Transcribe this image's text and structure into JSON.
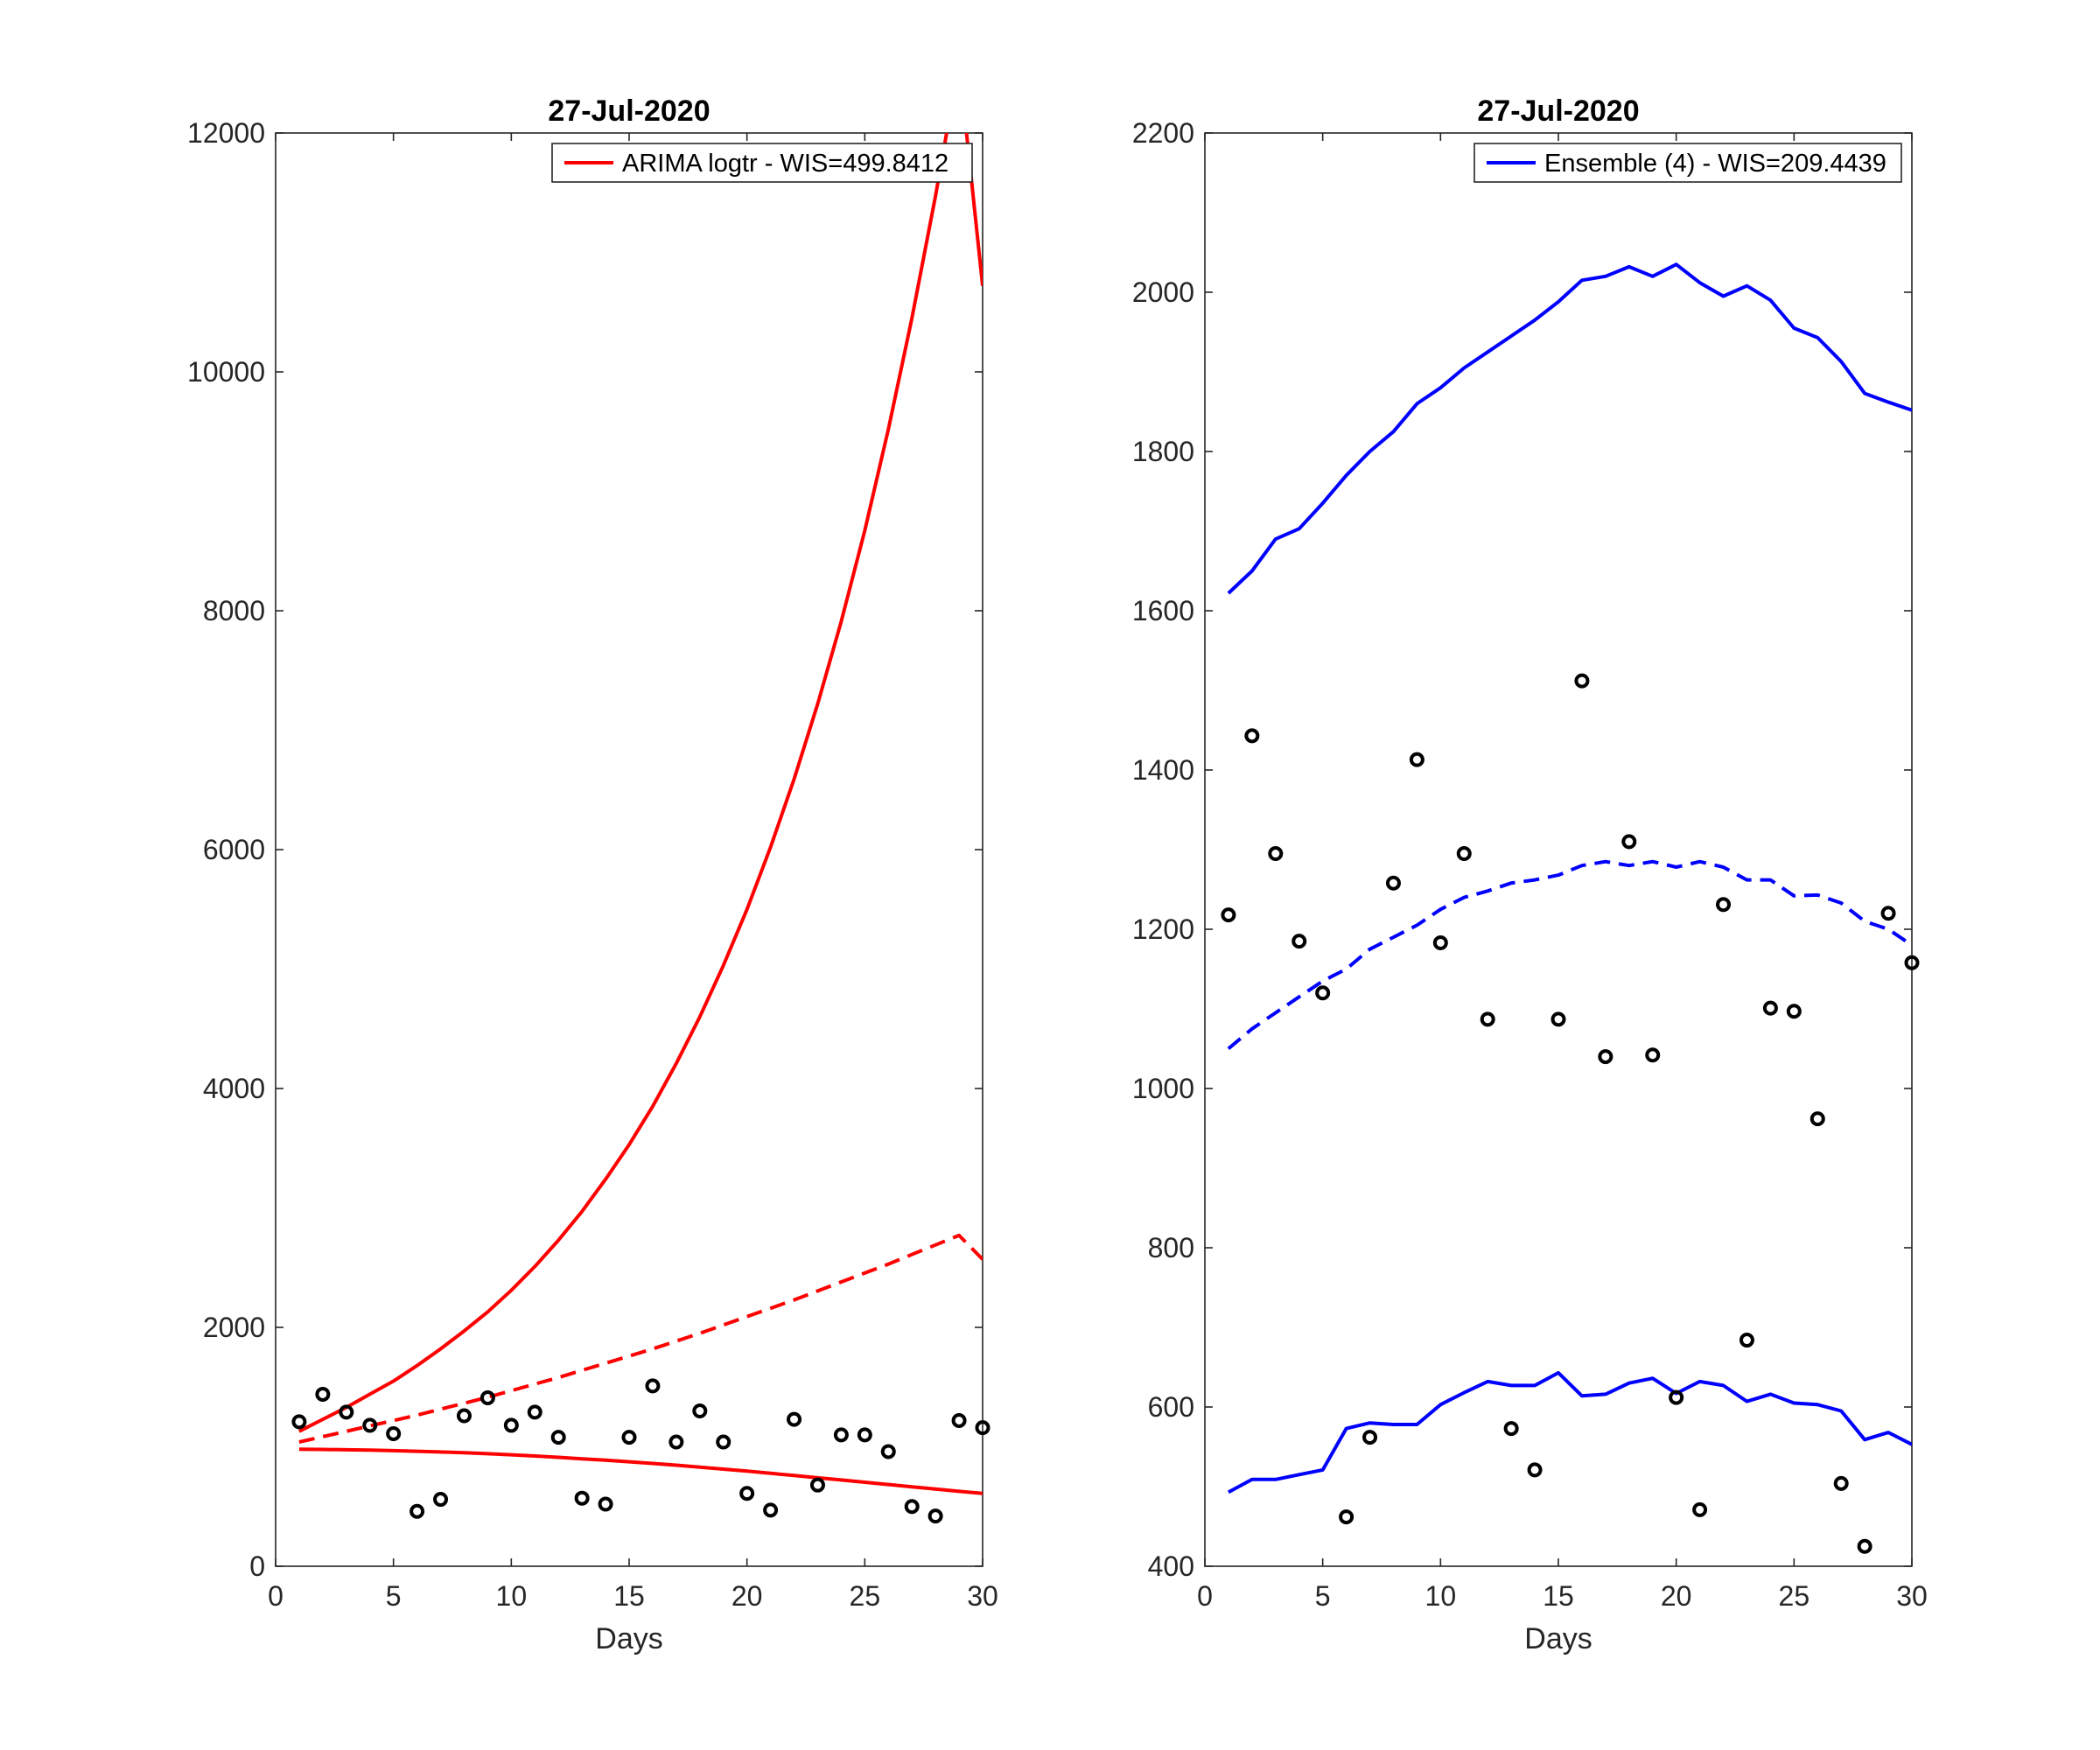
{
  "chart_data": [
    {
      "type": "line",
      "title": "27-Jul-2020",
      "xlabel": "Days",
      "ylabel": "",
      "xlim": [
        0,
        30
      ],
      "ylim": [
        0,
        12000
      ],
      "xticks": [
        0,
        5,
        10,
        15,
        20,
        25,
        30
      ],
      "yticks": [
        0,
        2000,
        4000,
        6000,
        8000,
        10000,
        12000
      ],
      "color": "#ff0000",
      "legend": {
        "label": "ARIMA logtr - WIS=499.8412",
        "placement": "top-right"
      },
      "x": [
        1,
        2,
        3,
        4,
        5,
        6,
        7,
        8,
        9,
        10,
        11,
        12,
        13,
        14,
        15,
        16,
        17,
        18,
        19,
        20,
        21,
        22,
        23,
        24,
        25,
        26,
        27,
        28,
        29,
        30
      ],
      "series": [
        {
          "role": "upper",
          "style": "solid",
          "values": [
            1130,
            1230,
            1330,
            1440,
            1550,
            1680,
            1820,
            1970,
            2130,
            2310,
            2510,
            2730,
            2970,
            3240,
            3530,
            3850,
            4210,
            4600,
            5030,
            5500,
            6020,
            6590,
            7220,
            7910,
            8670,
            9520,
            10450,
            11470,
            12590,
            10720
          ]
        },
        {
          "role": "median",
          "style": "dashed",
          "values": [
            1040,
            1085,
            1130,
            1175,
            1220,
            1265,
            1315,
            1365,
            1415,
            1470,
            1525,
            1580,
            1640,
            1700,
            1760,
            1820,
            1885,
            1950,
            2020,
            2090,
            2160,
            2230,
            2305,
            2380,
            2455,
            2530,
            2610,
            2690,
            2770,
            2570
          ]
        },
        {
          "role": "lower",
          "style": "solid",
          "values": [
            980,
            978,
            975,
            972,
            968,
            963,
            957,
            950,
            942,
            933,
            923,
            912,
            900,
            888,
            875,
            861,
            846,
            830,
            813,
            796,
            778,
            760,
            741,
            722,
            703,
            684,
            665,
            646,
            627,
            610
          ]
        }
      ],
      "observed": [
        1210,
        1440,
        1290,
        1180,
        1110,
        460,
        560,
        1260,
        1410,
        1180,
        1290,
        1080,
        570,
        520,
        1080,
        1510,
        1040,
        1300,
        1040,
        610,
        470,
        1230,
        680,
        1100,
        1100,
        960,
        500,
        420,
        1220,
        1160
      ]
    },
    {
      "type": "line",
      "title": "27-Jul-2020",
      "xlabel": "Days",
      "ylabel": "",
      "xlim": [
        0,
        30
      ],
      "ylim": [
        400,
        2200
      ],
      "xticks": [
        0,
        5,
        10,
        15,
        20,
        25,
        30
      ],
      "yticks": [
        400,
        600,
        800,
        1000,
        1200,
        1400,
        1600,
        1800,
        2000,
        2200
      ],
      "color": "#0000ff",
      "legend": {
        "label": "Ensemble (4) - WIS=209.4439",
        "placement": "top-right"
      },
      "x": [
        1,
        2,
        3,
        4,
        5,
        6,
        7,
        8,
        9,
        10,
        11,
        12,
        13,
        14,
        15,
        16,
        17,
        18,
        19,
        20,
        21,
        22,
        23,
        24,
        25,
        26,
        27,
        28,
        29,
        30
      ],
      "series": [
        {
          "role": "upper",
          "style": "solid",
          "values": [
            1622,
            1650,
            1690,
            1703,
            1735,
            1770,
            1800,
            1825,
            1860,
            1880,
            1905,
            1925,
            1945,
            1965,
            1988,
            2015,
            2020,
            2032,
            2020,
            2035,
            2012,
            1995,
            2008,
            1990,
            1955,
            1943,
            1913,
            1873,
            1862,
            1852
          ]
        },
        {
          "role": "median",
          "style": "dashed",
          "values": [
            1050,
            1075,
            1095,
            1115,
            1135,
            1150,
            1175,
            1190,
            1205,
            1225,
            1240,
            1248,
            1258,
            1262,
            1268,
            1280,
            1285,
            1280,
            1285,
            1278,
            1285,
            1278,
            1262,
            1262,
            1242,
            1243,
            1233,
            1210,
            1200,
            1180
          ]
        },
        {
          "role": "lower",
          "style": "solid",
          "values": [
            493,
            509,
            509,
            515,
            521,
            573,
            580,
            578,
            578,
            603,
            618,
            632,
            627,
            627,
            643,
            614,
            616,
            630,
            636,
            617,
            632,
            627,
            607,
            616,
            605,
            603,
            595,
            559,
            568,
            553
          ]
        }
      ],
      "observed": [
        1218,
        1443,
        1295,
        1185,
        1120,
        462,
        562,
        1258,
        1413,
        1183,
        1295,
        1087,
        573,
        521,
        1087,
        1512,
        1040,
        1310,
        1042,
        612,
        471,
        1231,
        684,
        1101,
        1097,
        962,
        504,
        425,
        1220,
        1158
      ]
    }
  ]
}
